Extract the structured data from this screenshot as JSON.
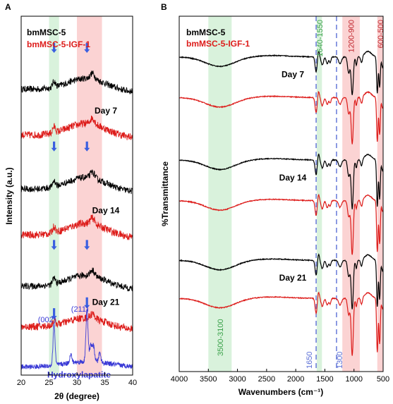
{
  "chart_data": [
    {
      "panel": "A",
      "type": "line",
      "xlabel": "2θ (degree)",
      "ylabel": "Intensity (a.u.)",
      "xlim": [
        20,
        40
      ],
      "xticks": [
        20,
        25,
        30,
        35,
        40
      ],
      "legend": {
        "placement": "top-left",
        "entries": [
          {
            "name": "bmMSC-5",
            "color": "#000000"
          },
          {
            "name": "bmMSC-5-IGF-1",
            "color": "#dd1c1a"
          }
        ]
      },
      "bands": [
        {
          "from": 25.0,
          "to": 26.8,
          "color": "#d9f2dc"
        },
        {
          "from": 30.0,
          "to": 34.5,
          "color": "#fbd3d3"
        }
      ],
      "arrow_positions": [
        25.9,
        31.8
      ],
      "arrow_color": "#3a5fe0",
      "groups": [
        {
          "label": "Day 7",
          "series": [
            {
              "name": "bmMSC-5",
              "color": "#000000",
              "offset": 10.3,
              "amplitude": 0.85,
              "noise": 0.12
            },
            {
              "name": "bmMSC-5-IGF-1",
              "color": "#dd1c1a",
              "offset": 8.6,
              "amplitude": 0.9,
              "noise": 0.14
            }
          ]
        },
        {
          "label": "Day 14",
          "series": [
            {
              "name": "bmMSC-5",
              "color": "#000000",
              "offset": 6.6,
              "amplitude": 0.9,
              "noise": 0.12
            },
            {
              "name": "bmMSC-5-IGF-1",
              "color": "#dd1c1a",
              "offset": 4.9,
              "amplitude": 0.9,
              "noise": 0.14
            }
          ]
        },
        {
          "label": "Day 21",
          "series": [
            {
              "name": "bmMSC-5",
              "color": "#000000",
              "offset": 3.0,
              "amplitude": 0.85,
              "noise": 0.12
            },
            {
              "name": "bmMSC-5-IGF-1",
              "color": "#dd1c1a",
              "offset": 1.5,
              "amplitude": 0.7,
              "noise": 0.14
            }
          ]
        }
      ],
      "reference": {
        "name": "Hydroxylapatite",
        "color": "#3a3ad6",
        "offset": 0.0,
        "peaks": [
          {
            "x": 25.9,
            "label": "(002)",
            "height": 1.5
          },
          {
            "x": 31.8,
            "label": "(211)",
            "height": 1.9
          }
        ]
      },
      "ylim": [
        -0.3,
        13.0
      ]
    },
    {
      "panel": "B",
      "type": "line",
      "xlabel": "Wavenumbers (cm⁻¹)",
      "ylabel": "%Transmittance",
      "xlim": [
        4000,
        500
      ],
      "xticks": [
        4000,
        3500,
        3000,
        2500,
        2000,
        1500,
        1000,
        500
      ],
      "legend": {
        "placement": "top-left",
        "entries": [
          {
            "name": "bmMSC-5",
            "color": "#000000"
          },
          {
            "name": "bmMSC-5-IGF-1",
            "color": "#dd1c1a"
          }
        ]
      },
      "bands": [
        {
          "from": 3500,
          "to": 3100,
          "label": "3500-3100",
          "color": "#d9f2dc",
          "label_color": "#3aa14a"
        },
        {
          "from": 1640,
          "to": 1550,
          "label": "1640-1550",
          "color": "#d9f2dc",
          "label_color": "#3aa14a"
        },
        {
          "from": 1200,
          "to": 900,
          "label": "1200-900",
          "color": "#fbd3d3",
          "label_color": "#c0262d"
        },
        {
          "from": 600,
          "to": 500,
          "label": "600-500",
          "color": "#fbd3d3",
          "label_color": "#c0262d"
        }
      ],
      "dashed_lines": [
        {
          "x": 1650,
          "label": "1650"
        },
        {
          "x": 1300,
          "label": "1300"
        }
      ],
      "dashed_color": "#5b6fd6",
      "groups": [
        {
          "label": "Day 7",
          "series": [
            {
              "name": "bmMSC-5",
              "color": "#000000",
              "offset": 9.7,
              "depth": 1.4
            },
            {
              "name": "bmMSC-5-IGF-1",
              "color": "#dd1c1a",
              "offset": 8.2,
              "depth": 1.7
            }
          ]
        },
        {
          "label": "Day 14",
          "series": [
            {
              "name": "bmMSC-5",
              "color": "#000000",
              "offset": 5.9,
              "depth": 1.8
            },
            {
              "name": "bmMSC-5-IGF-1",
              "color": "#dd1c1a",
              "offset": 4.4,
              "depth": 2.0
            }
          ]
        },
        {
          "label": "Day 21",
          "series": [
            {
              "name": "bmMSC-5",
              "color": "#000000",
              "offset": 2.2,
              "depth": 1.8
            },
            {
              "name": "bmMSC-5-IGF-1",
              "color": "#dd1c1a",
              "offset": 0.8,
              "depth": 2.1
            }
          ]
        }
      ],
      "ylim": [
        -1.9,
        11.2
      ]
    }
  ]
}
